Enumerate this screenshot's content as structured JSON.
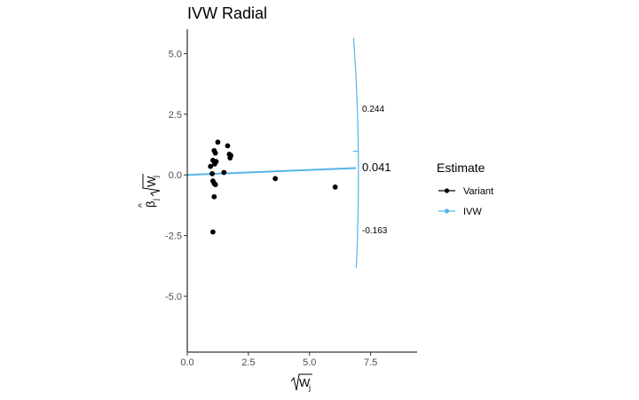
{
  "chart_data": {
    "type": "scatter",
    "title": "IVW Radial",
    "xlabel": "√W_j",
    "ylabel": "β̂_j √W_j",
    "xlim": [
      0,
      9.4
    ],
    "ylim": [
      -7.3,
      6.0
    ],
    "x_ticks": [
      0,
      2.5,
      5.0,
      7.5
    ],
    "x_tick_labels": [
      "0.0",
      "2.5",
      "5.0",
      "7.5"
    ],
    "y_ticks": [
      -5,
      -2.5,
      0,
      2.5,
      5
    ],
    "y_tick_labels": [
      "-5.0",
      "-2.5",
      "0.0",
      "2.5",
      "5.0"
    ],
    "grid": false,
    "series": [
      {
        "name": "Variant",
        "color": "#000000",
        "points": [
          [
            0.95,
            0.35
          ],
          [
            1.02,
            0.05
          ],
          [
            1.05,
            0.6
          ],
          [
            1.05,
            -0.25
          ],
          [
            1.05,
            -2.35
          ],
          [
            1.1,
            1.0
          ],
          [
            1.1,
            -0.35
          ],
          [
            1.1,
            -0.9
          ],
          [
            1.12,
            0.45
          ],
          [
            1.15,
            0.9
          ],
          [
            1.15,
            -0.4
          ],
          [
            1.18,
            0.55
          ],
          [
            1.25,
            1.35
          ],
          [
            1.5,
            0.1
          ],
          [
            1.65,
            1.2
          ],
          [
            1.72,
            0.85
          ],
          [
            1.75,
            0.7
          ],
          [
            1.78,
            0.8
          ],
          [
            3.6,
            -0.15
          ],
          [
            6.05,
            -0.5
          ]
        ]
      },
      {
        "name": "IVW",
        "color": "#56B4E9",
        "slope": 0.041,
        "line_x": [
          0,
          6.9
        ]
      }
    ],
    "annotations": [
      {
        "label": "0.244",
        "slope": 0.244
      },
      {
        "label": "0.041",
        "slope": 0.041
      },
      {
        "label": "-0.163",
        "slope": -0.163
      }
    ],
    "legend": {
      "title": "Estimate",
      "placement": "right",
      "items": [
        {
          "label": "Variant",
          "color": "#000000"
        },
        {
          "label": "IVW",
          "color": "#56B4E9"
        }
      ]
    }
  }
}
